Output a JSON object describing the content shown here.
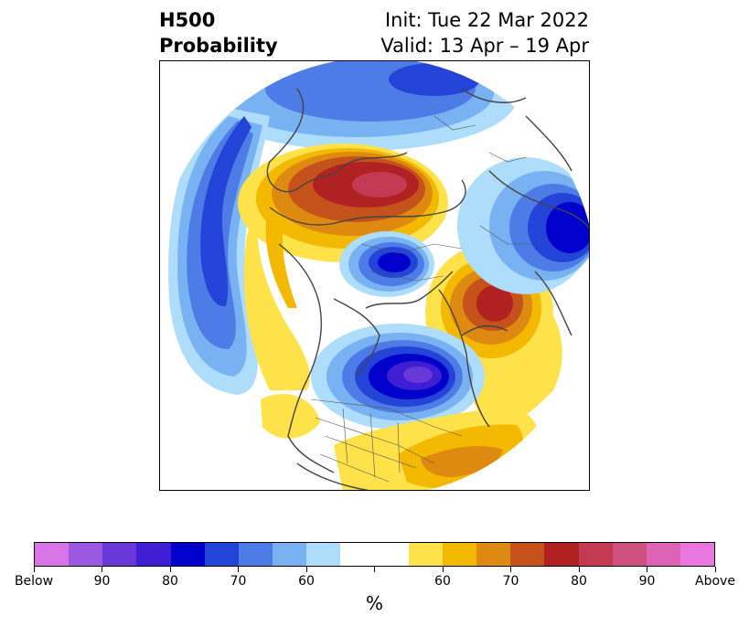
{
  "title": {
    "left_line1": "H500",
    "left_line2": "Probability",
    "right_line1": "Init: Tue 22 Mar 2022",
    "right_line2": "Valid: 13 Apr – 19 Apr"
  },
  "colorbar": {
    "colors": [
      "#d873e8",
      "#9b58e0",
      "#6a38d8",
      "#3f1fd4",
      "#0000cc",
      "#2444d8",
      "#4e7ce6",
      "#79b2f2",
      "#aedcfb",
      "#ffffff",
      "#ffffff",
      "#ffe14a",
      "#f3b800",
      "#de8a10",
      "#c4521a",
      "#b02222",
      "#c33a52",
      "#cf4f7e",
      "#dd63b3",
      "#ea77df"
    ],
    "tick_labels": [
      "Below",
      "90",
      "80",
      "70",
      "60",
      "",
      "60",
      "70",
      "80",
      "90",
      "Above"
    ],
    "unit_label": "%"
  },
  "map": {
    "projection": "north-polar-stereographic",
    "variable": "500 hPa height anomaly probability",
    "anomaly_centers": [
      {
        "sign": "above",
        "region": "Northern Europe / Scandinavia",
        "max_pct": "80-85"
      },
      {
        "sign": "below",
        "region": "Northeastern North America / Hudson Bay",
        "max_pct": "85-90"
      },
      {
        "sign": "below",
        "region": "Arctic Ocean north of Siberia",
        "max_pct": "80"
      },
      {
        "sign": "above",
        "region": "Alaska / Bering Sea",
        "max_pct": "80"
      },
      {
        "sign": "below",
        "region": "North Pacific / Kamchatka",
        "max_pct": "80"
      },
      {
        "sign": "below",
        "region": "Eastern Europe / Russia",
        "max_pct": "70"
      },
      {
        "sign": "above",
        "region": "Southeastern United States / Atlantic",
        "max_pct": "70"
      }
    ]
  }
}
